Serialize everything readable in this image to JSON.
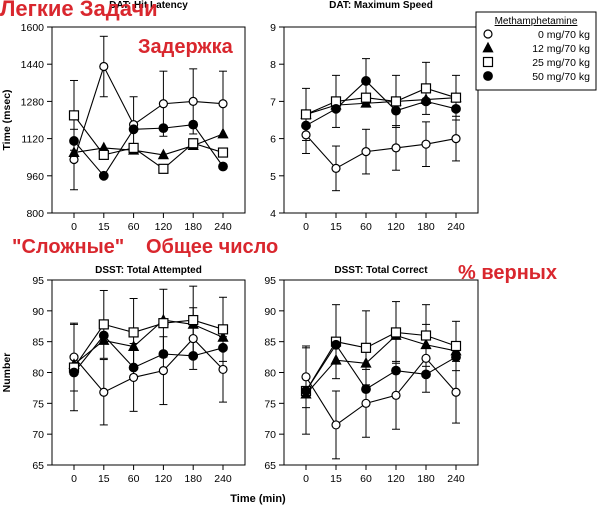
{
  "legend": {
    "title": "Methamphetamine",
    "items": [
      "0 mg/70 kg",
      "12 mg/70 kg",
      "25 mg/70 kg",
      "50 mg/70 kg"
    ]
  },
  "annotations": {
    "easy_tasks": "Легкие Задачи",
    "latency": "Задержка",
    "hard_tasks": "\"Сложные\"",
    "total_count": "Общее число",
    "percent_correct": "% верных"
  },
  "common_xlabel": "Time (min)",
  "series_colors": {
    "0": "#ffffff",
    "12": "#000000",
    "25": "#ffffff",
    "50": "#000000"
  },
  "chart_data": [
    {
      "type": "line",
      "title": "DAT: Hit Latency",
      "ylabel": "Time (msec)",
      "xlabel": "",
      "categories": [
        "0",
        "15",
        "60",
        "120",
        "180",
        "240"
      ],
      "ylim": [
        800,
        1600
      ],
      "yticks": [
        800,
        960,
        1120,
        1280,
        1440,
        1600
      ],
      "series": [
        {
          "name": "0 mg/70 kg",
          "marker": "circle-open",
          "values": [
            1030,
            1430,
            1180,
            1270,
            1280,
            1270
          ],
          "err": [
            130,
            130,
            120,
            140,
            140,
            140
          ]
        },
        {
          "name": "12 mg/70 kg",
          "marker": "triangle",
          "values": [
            1060,
            1080,
            1070,
            1050,
            1090,
            1140
          ],
          "err": [
            0,
            0,
            0,
            0,
            0,
            0
          ]
        },
        {
          "name": "25 mg/70 kg",
          "marker": "square-open",
          "values": [
            1220,
            1050,
            1080,
            990,
            1100,
            1060
          ],
          "err": [
            150,
            0,
            0,
            0,
            0,
            0
          ]
        },
        {
          "name": "50 mg/70 kg",
          "marker": "circle-filled",
          "values": [
            1110,
            960,
            1160,
            1165,
            1180,
            1000
          ],
          "err": [
            0,
            0,
            0,
            0,
            0,
            0
          ]
        }
      ]
    },
    {
      "type": "line",
      "title": "DAT: Maximum Speed",
      "ylabel": "",
      "xlabel": "",
      "categories": [
        "0",
        "15",
        "60",
        "120",
        "180",
        "240"
      ],
      "ylim": [
        4,
        9
      ],
      "yticks": [
        4,
        5,
        6,
        7,
        8,
        9
      ],
      "series": [
        {
          "name": "0 mg/70 kg",
          "marker": "circle-open",
          "values": [
            6.1,
            5.2,
            5.65,
            5.75,
            5.85,
            6.0
          ],
          "err": [
            0.5,
            0.6,
            0.6,
            0.6,
            0.6,
            0.6
          ]
        },
        {
          "name": "12 mg/70 kg",
          "marker": "triangle",
          "values": [
            6.65,
            6.9,
            6.95,
            7.0,
            7.05,
            7.1
          ],
          "err": [
            0,
            0,
            0,
            0,
            0,
            0
          ]
        },
        {
          "name": "25 mg/70 kg",
          "marker": "square-open",
          "values": [
            6.65,
            7.0,
            7.1,
            7.0,
            7.35,
            7.1
          ],
          "err": [
            0.7,
            0.7,
            0,
            0.7,
            0.7,
            0.6
          ]
        },
        {
          "name": "50 mg/70 kg",
          "marker": "circle-filled",
          "values": [
            6.35,
            6.8,
            7.55,
            6.75,
            7.0,
            6.8
          ],
          "err": [
            0,
            0,
            0.6,
            0,
            0,
            0
          ]
        }
      ]
    },
    {
      "type": "line",
      "title": "DSST: Total Attempted",
      "ylabel": "Number",
      "xlabel": "",
      "categories": [
        "0",
        "15",
        "60",
        "120",
        "180",
        "240"
      ],
      "ylim": [
        65,
        95
      ],
      "yticks": [
        65,
        70,
        75,
        80,
        85,
        90,
        95
      ],
      "series": [
        {
          "name": "0 mg/70 kg",
          "marker": "circle-open",
          "values": [
            82.5,
            76.8,
            79.2,
            80.3,
            85.5,
            80.5
          ],
          "err": [
            5.5,
            5.3,
            5.5,
            5.5,
            5,
            5.3
          ]
        },
        {
          "name": "12 mg/70 kg",
          "marker": "triangle",
          "values": [
            81.3,
            85.2,
            84.2,
            88.5,
            87.8,
            85.7
          ],
          "err": [
            0,
            0,
            0,
            0,
            0,
            0
          ]
        },
        {
          "name": "25 mg/70 kg",
          "marker": "square-open",
          "values": [
            80.8,
            87.8,
            86.5,
            88.0,
            88.5,
            87.0
          ],
          "err": [
            7,
            5.5,
            5.5,
            5.5,
            5.5,
            5.2
          ]
        },
        {
          "name": "50 mg/70 kg",
          "marker": "circle-filled",
          "values": [
            80.0,
            86.0,
            80.8,
            83.0,
            82.7,
            84.0
          ],
          "err": [
            0,
            0,
            0,
            0,
            0,
            0
          ]
        }
      ]
    },
    {
      "type": "line",
      "title": "DSST: Total Correct",
      "ylabel": "",
      "xlabel": "",
      "categories": [
        "0",
        "15",
        "60",
        "120",
        "180",
        "240"
      ],
      "ylim": [
        65,
        95
      ],
      "yticks": [
        65,
        70,
        75,
        80,
        85,
        90,
        95
      ],
      "series": [
        {
          "name": "0 mg/70 kg",
          "marker": "circle-open",
          "values": [
            79.3,
            71.5,
            75.0,
            76.3,
            82.3,
            76.8
          ],
          "err": [
            5,
            5.5,
            5.5,
            5.5,
            5.5,
            5
          ]
        },
        {
          "name": "12 mg/70 kg",
          "marker": "triangle",
          "values": [
            76.5,
            82.0,
            81.5,
            86.0,
            84.5,
            83.5
          ],
          "err": [
            0,
            0,
            0,
            0,
            0,
            0
          ]
        },
        {
          "name": "25 mg/70 kg",
          "marker": "square-open",
          "values": [
            77.0,
            85.0,
            84.0,
            86.5,
            86.0,
            84.3
          ],
          "err": [
            7,
            6,
            6,
            5,
            5,
            4
          ]
        },
        {
          "name": "50 mg/70 kg",
          "marker": "circle-filled",
          "values": [
            77.0,
            84.5,
            77.3,
            80.3,
            79.7,
            82.5
          ],
          "err": [
            0,
            0,
            0,
            0,
            0,
            0
          ]
        }
      ]
    }
  ]
}
